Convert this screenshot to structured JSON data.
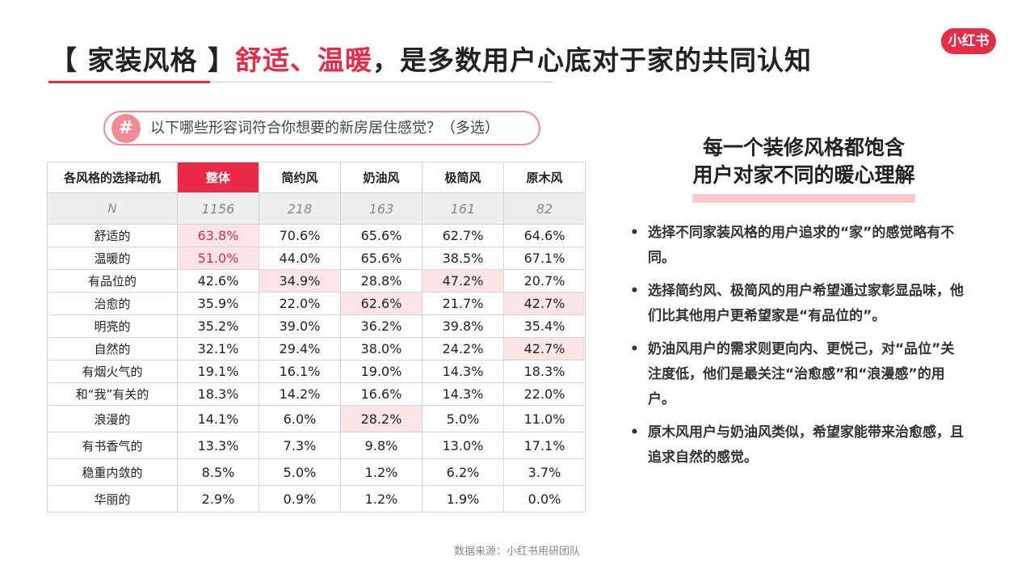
{
  "header": {
    "title_prefix": "【 家装风格 】",
    "title_highlight": "舒适、温暖",
    "title_rest": "，是多数用户心底对于家的共同认知",
    "logo": "小红书"
  },
  "question": {
    "icon": "#",
    "text": "以下哪些形容词符合你想要的新房居住感觉？（多选）"
  },
  "table": {
    "columns": [
      "各风格的选择动机",
      "整体",
      "简约风",
      "奶油风",
      "极简风",
      "原木风"
    ],
    "n_row": [
      "N",
      "1156",
      "218",
      "163",
      "161",
      "82"
    ],
    "rows": [
      [
        "舒适的",
        "63.8%",
        "70.6%",
        "65.6%",
        "62.7%",
        "64.6%"
      ],
      [
        "温暖的",
        "51.0%",
        "44.0%",
        "65.6%",
        "38.5%",
        "67.1%"
      ],
      [
        "有品位的",
        "42.6%",
        "34.9%",
        "28.8%",
        "47.2%",
        "20.7%"
      ],
      [
        "治愈的",
        "35.9%",
        "22.0%",
        "62.6%",
        "21.7%",
        "42.7%"
      ],
      [
        "明亮的",
        "35.2%",
        "39.0%",
        "36.2%",
        "39.8%",
        "35.4%"
      ],
      [
        "自然的",
        "32.1%",
        "29.4%",
        "38.0%",
        "24.2%",
        "42.7%"
      ],
      [
        "有烟火气的",
        "19.1%",
        "16.1%",
        "19.0%",
        "14.3%",
        "18.3%"
      ],
      [
        "和“我”有关的",
        "18.3%",
        "14.2%",
        "16.6%",
        "14.3%",
        "22.0%"
      ],
      [
        "浪漫的",
        "14.1%",
        "6.0%",
        "28.2%",
        "5.0%",
        "11.0%"
      ],
      [
        "有书香气的",
        "13.3%",
        "7.3%",
        "9.8%",
        "13.0%",
        "17.1%"
      ],
      [
        "稳重内敛的",
        "8.5%",
        "5.0%",
        "1.2%",
        "6.2%",
        "3.7%"
      ],
      [
        "华丽的",
        "2.9%",
        "0.9%",
        "1.2%",
        "1.9%",
        "0.0%"
      ]
    ],
    "highlighted_cells": [
      [
        0,
        1
      ],
      [
        1,
        1
      ],
      [
        2,
        2
      ],
      [
        2,
        4
      ],
      [
        3,
        3
      ],
      [
        3,
        5
      ],
      [
        5,
        5
      ],
      [
        8,
        3
      ]
    ]
  },
  "summary": {
    "heading": [
      "每一个装修风格都饱含",
      "用户对家不同的暖心理解"
    ],
    "bullets": [
      "选择不同家装风格的用户追求的“家”的感觉略有不同。",
      "选择简约风、极简风的用户希望通过家彰显品味，他们比其他用户更希望家是“有品位的”。",
      "奶油风用户的需求则更向内、更悦己，对“品位”关注度低，他们是最关注“治愈感”和“浪漫感”的用户。",
      "原木风用户与奶油风类似，希望家能带来治愈感，且追求自然的感觉。"
    ]
  },
  "footer": {
    "source": "数据来源：小红书用研团队"
  }
}
